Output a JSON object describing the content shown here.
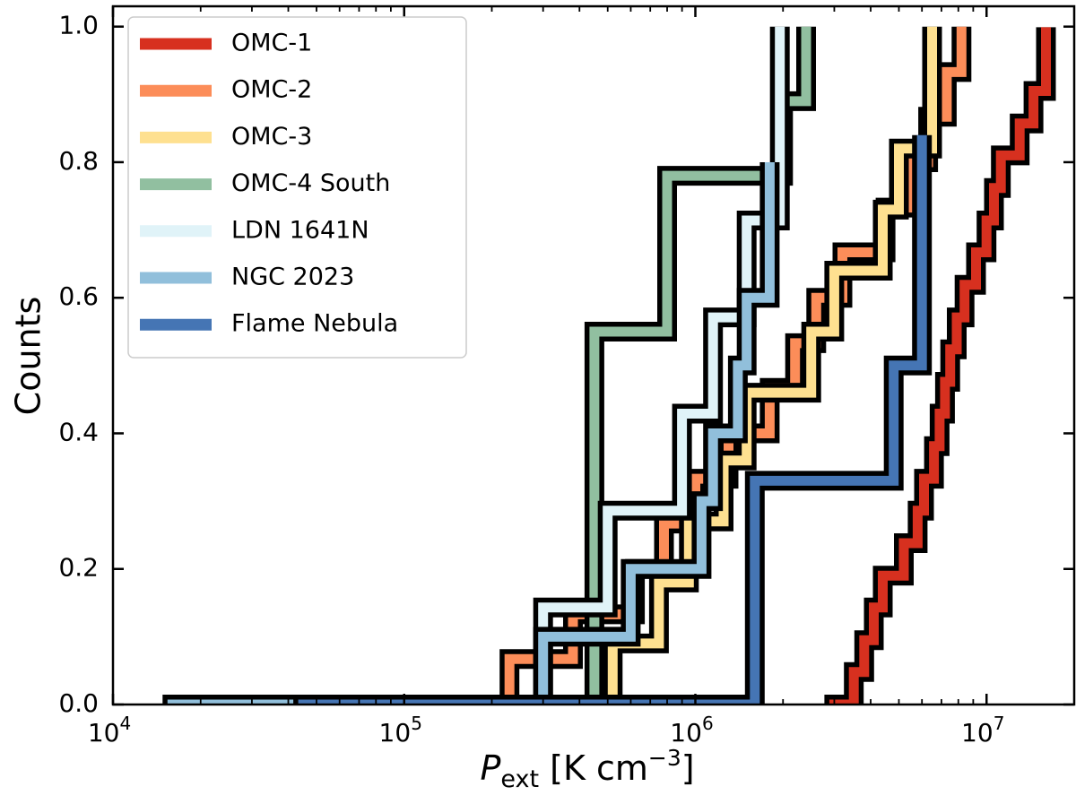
{
  "chart_data": {
    "type": "line",
    "subtype": "step-cdf",
    "title": "",
    "xlabel": {
      "symbol": "P",
      "subscript": "ext",
      "unit": " [K cm",
      "unit_exp": "−3",
      "unit_close": "]"
    },
    "ylabel": "Counts",
    "xscale": "log",
    "xlim": [
      10000,
      20000000
    ],
    "ylim": [
      0.0,
      1.03
    ],
    "x_ticks": [
      {
        "value": 10000,
        "base": "10",
        "exp": "4"
      },
      {
        "value": 100000,
        "base": "10",
        "exp": "5"
      },
      {
        "value": 1000000,
        "base": "10",
        "exp": "6"
      },
      {
        "value": 10000000,
        "base": "10",
        "exp": "7"
      }
    ],
    "y_ticks": [
      {
        "value": 0.0,
        "label": "0.0"
      },
      {
        "value": 0.2,
        "label": "0.2"
      },
      {
        "value": 0.4,
        "label": "0.4"
      },
      {
        "value": 0.6,
        "label": "0.6"
      },
      {
        "value": 0.8,
        "label": "0.8"
      },
      {
        "value": 1.0,
        "label": "1.0"
      }
    ],
    "legend_position": "top-left",
    "series": [
      {
        "name": "OMC-1",
        "color": "#d7301f",
        "x": [
          3000000.0,
          3500000.0,
          3800000.0,
          4100000.0,
          4400000.0,
          5200000.0,
          5800000.0,
          6100000.0,
          6600000.0,
          6900000.0,
          7200000.0,
          7500000.0,
          7900000.0,
          8400000.0,
          9200000.0,
          10000000.0,
          10600000.0,
          11200000.0,
          13000000.0,
          14500000.0,
          16000000.0
        ],
        "y": [
          0.0,
          0.048,
          0.095,
          0.143,
          0.19,
          0.238,
          0.286,
          0.333,
          0.381,
          0.429,
          0.476,
          0.524,
          0.571,
          0.619,
          0.667,
          0.714,
          0.762,
          0.81,
          0.857,
          0.905,
          0.952
        ]
      },
      {
        "name": "OMC-2",
        "color": "#fc8d59",
        "x": [
          55000.0,
          230000.0,
          380000.0,
          620000.0,
          780000.0,
          1000000.0,
          1300000.0,
          1800000.0,
          2200000.0,
          2600000.0,
          3200000.0,
          4500000.0,
          5400000.0,
          6300000.0,
          7300000.0,
          8200000.0
        ],
        "y": [
          0.0,
          0.067,
          0.133,
          0.2,
          0.267,
          0.333,
          0.4,
          0.467,
          0.533,
          0.6,
          0.667,
          0.733,
          0.8,
          0.867,
          0.933,
          0.967
        ]
      },
      {
        "name": "OMC-3",
        "color": "#fee090",
        "x": [
          210000.0,
          520000.0,
          750000.0,
          950000.0,
          1250000.0,
          1500000.0,
          2500000.0,
          3000000.0,
          4400000.0,
          5000000.0,
          6500000.0
        ],
        "y": [
          0.0,
          0.09,
          0.18,
          0.27,
          0.36,
          0.46,
          0.55,
          0.64,
          0.73,
          0.82,
          0.91
        ]
      },
      {
        "name": "OMC-4 South",
        "color": "#91bfa0",
        "x": [
          29000.0,
          450000.0,
          800000.0,
          2000000.0,
          2400000.0
        ],
        "y": [
          0.0,
          0.55,
          0.78,
          0.89,
          0.99
        ]
      },
      {
        "name": "LDN 1641N",
        "color": "#e0f3f8",
        "x": [
          210000.0,
          300000.0,
          500000.0,
          900000.0,
          1150000.0,
          1500000.0,
          1950000.0
        ],
        "y": [
          0.0,
          0.143,
          0.286,
          0.429,
          0.571,
          0.714,
          0.857
        ]
      },
      {
        "name": "NGC 2023",
        "color": "#91bfdb",
        "x": [
          16000.0,
          300000.0,
          600000.0,
          1050000.0,
          1150000.0,
          1400000.0,
          1500000.0,
          1800000.0
        ],
        "y": [
          0.0,
          0.1,
          0.2,
          0.3,
          0.4,
          0.5,
          0.6,
          0.7
        ]
      },
      {
        "name": "Flame Nebula",
        "color": "#4575b4",
        "x": [
          45000.0,
          1600000.0,
          4800000.0,
          6000000.0
        ],
        "y": [
          0.0,
          0.33,
          0.5,
          0.67
        ]
      }
    ]
  }
}
